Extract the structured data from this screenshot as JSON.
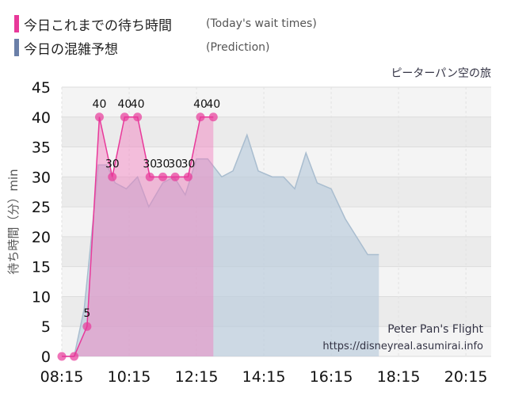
{
  "legend": [
    {
      "label_jp": "今日これまでの待ち時間",
      "label_en": "(Today's wait times)",
      "color": "#e8399a"
    },
    {
      "label_jp": "今日の混雑予想",
      "label_en": "(Prediction)",
      "color": "#6a7fa8"
    }
  ],
  "attraction_jp": "ピーターパン空の旅",
  "attraction_en": "Peter Pan's Flight",
  "source_url": "https://disneyreal.asumirai.info",
  "chart_data": {
    "type": "area",
    "ylabel": "待ち時間（分）min",
    "ylim": [
      0,
      45
    ],
    "yticks": [
      0,
      5,
      10,
      15,
      20,
      25,
      30,
      35,
      40,
      45
    ],
    "xlim": [
      "08:15",
      "21:00"
    ],
    "xticks": [
      "08:15",
      "10:15",
      "12:15",
      "14:15",
      "16:15",
      "18:15",
      "20:15"
    ],
    "grid": true,
    "series": [
      {
        "name": "今日これまでの待ち時間",
        "color": "#e8399a",
        "points": [
          {
            "x": "08:15",
            "y": 0,
            "label": "0"
          },
          {
            "x": "08:37",
            "y": 0,
            "label": "0"
          },
          {
            "x": "09:00",
            "y": 5,
            "label": "5"
          },
          {
            "x": "09:22",
            "y": 40,
            "label": "40"
          },
          {
            "x": "09:45",
            "y": 30,
            "label": "30"
          },
          {
            "x": "10:07",
            "y": 40,
            "label": "40"
          },
          {
            "x": "10:30",
            "y": 40,
            "label": "40"
          },
          {
            "x": "10:52",
            "y": 30,
            "label": "30"
          },
          {
            "x": "11:15",
            "y": 30,
            "label": "30"
          },
          {
            "x": "11:37",
            "y": 30,
            "label": "30"
          },
          {
            "x": "12:00",
            "y": 30,
            "label": "30"
          },
          {
            "x": "12:22",
            "y": 40,
            "label": "40"
          },
          {
            "x": "12:45",
            "y": 40,
            "label": "40"
          }
        ]
      },
      {
        "name": "今日の混雑予想",
        "color": "#b9cbdb",
        "points": [
          {
            "x": "08:15",
            "y": 0
          },
          {
            "x": "08:37",
            "y": 0
          },
          {
            "x": "08:55",
            "y": 8
          },
          {
            "x": "09:10",
            "y": 22
          },
          {
            "x": "09:20",
            "y": 32
          },
          {
            "x": "09:35",
            "y": 32
          },
          {
            "x": "09:50",
            "y": 29
          },
          {
            "x": "10:10",
            "y": 28
          },
          {
            "x": "10:30",
            "y": 30
          },
          {
            "x": "10:50",
            "y": 25
          },
          {
            "x": "11:15",
            "y": 29
          },
          {
            "x": "11:35",
            "y": 30
          },
          {
            "x": "11:55",
            "y": 27
          },
          {
            "x": "12:15",
            "y": 33
          },
          {
            "x": "12:35",
            "y": 33
          },
          {
            "x": "13:00",
            "y": 30
          },
          {
            "x": "13:20",
            "y": 31
          },
          {
            "x": "13:45",
            "y": 37
          },
          {
            "x": "14:05",
            "y": 31
          },
          {
            "x": "14:30",
            "y": 30
          },
          {
            "x": "14:50",
            "y": 30
          },
          {
            "x": "15:10",
            "y": 28
          },
          {
            "x": "15:30",
            "y": 34
          },
          {
            "x": "15:50",
            "y": 29
          },
          {
            "x": "16:15",
            "y": 28
          },
          {
            "x": "16:40",
            "y": 23
          },
          {
            "x": "17:00",
            "y": 20
          },
          {
            "x": "17:20",
            "y": 17
          },
          {
            "x": "17:40",
            "y": 17
          }
        ]
      }
    ]
  }
}
